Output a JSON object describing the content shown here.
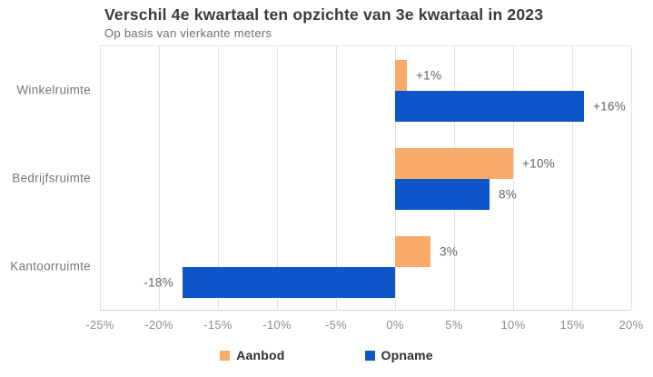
{
  "chart_data": {
    "type": "bar",
    "orientation": "horizontal",
    "title": "Verschil 4e kwartaal ten opzichte van 3e kwartaal in 2023",
    "subtitle": "Op basis van vierkante meters",
    "categories": [
      "Winkelruimte",
      "Bedrijfsruimte",
      "Kantoorruimte"
    ],
    "series": [
      {
        "name": "Aanbod",
        "color": "#FAAA69",
        "values": [
          1,
          10,
          3
        ],
        "labels": [
          "+1%",
          "+10%",
          "3%"
        ]
      },
      {
        "name": "Opname",
        "color": "#0D56C9",
        "values": [
          16,
          8,
          -18
        ],
        "labels": [
          "+16%",
          "8%",
          "-18%"
        ]
      }
    ],
    "x_axis": {
      "min": -25,
      "max": 20,
      "step": 5,
      "tick_labels": [
        "-25%",
        "-20%",
        "-15%",
        "-10%",
        "-5%",
        "0%",
        "5%",
        "10%",
        "15%",
        "20%"
      ]
    },
    "grid": true,
    "legend_position": "bottom",
    "label_color": "#636363",
    "grid_color": "#e3e3e3"
  }
}
